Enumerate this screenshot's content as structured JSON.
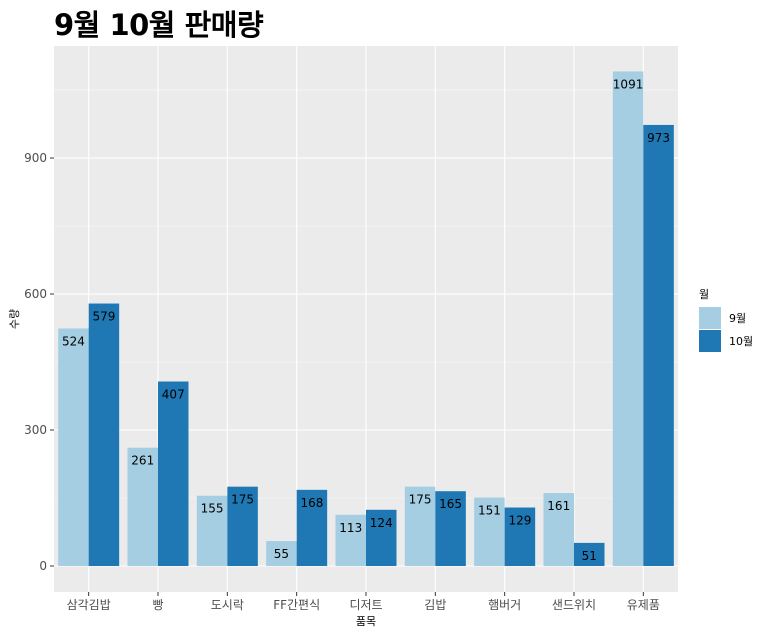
{
  "chart_data": {
    "type": "bar",
    "title": "9월 10월 판매량",
    "xlabel": "품목",
    "ylabel": "수량",
    "categories": [
      "삼각김밥",
      "빵",
      "도시락",
      "FF간편식",
      "디저트",
      "김밥",
      "햄버거",
      "샌드위치",
      "유제품"
    ],
    "series": [
      {
        "name": "9월",
        "color": "#a6cee3",
        "values": [
          524,
          261,
          155,
          55,
          113,
          175,
          151,
          161,
          1091
        ]
      },
      {
        "name": "10월",
        "color": "#1f78b4",
        "values": [
          579,
          407,
          175,
          168,
          124,
          165,
          129,
          51,
          973
        ]
      }
    ],
    "ylim": [
      0,
      1110
    ],
    "yticks": [
      0,
      300,
      600,
      900
    ],
    "grid": true,
    "legend": {
      "title": "월",
      "position": "right"
    }
  }
}
